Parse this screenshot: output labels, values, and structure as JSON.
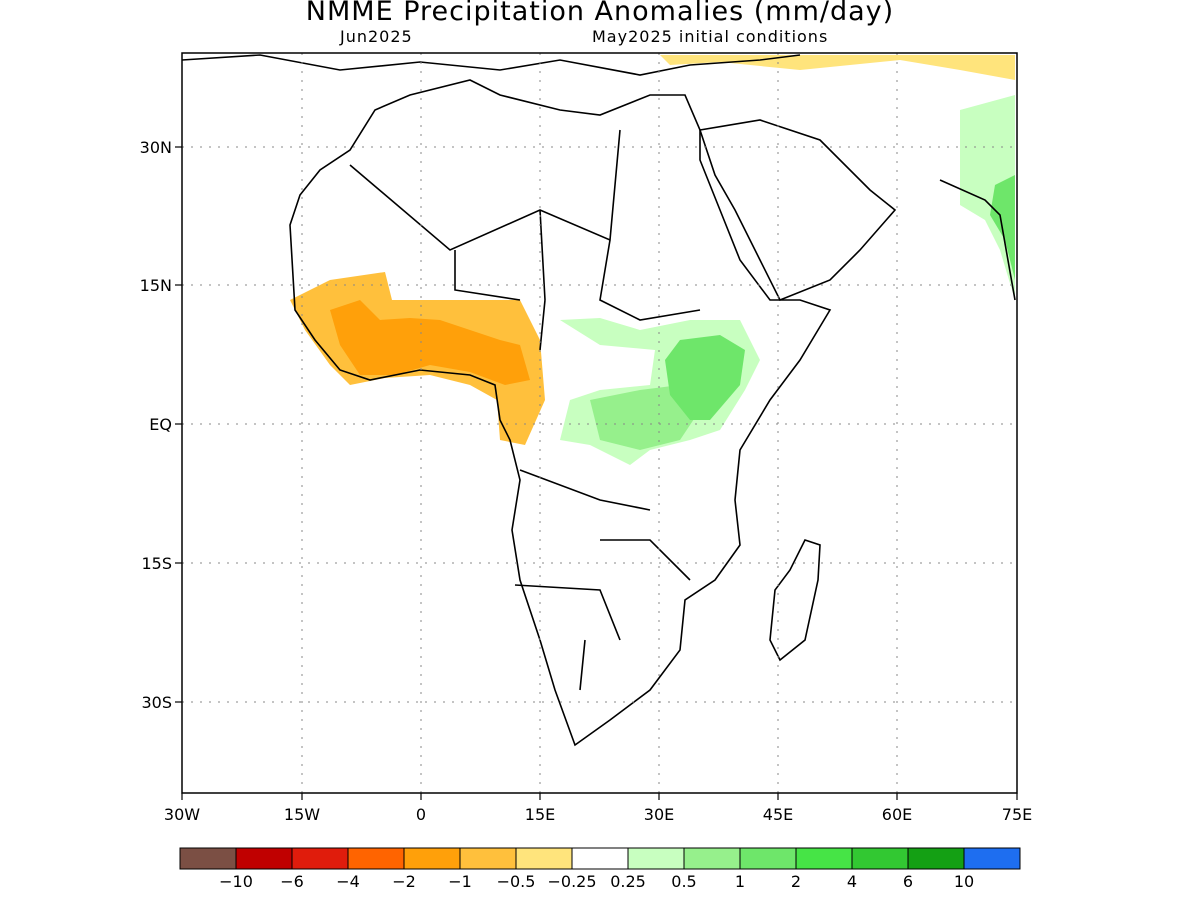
{
  "header": {
    "title": "NMME Precipitation Anomalies (mm/day)",
    "target_month": "Jun2025",
    "initial_conditions": "May2025 initial conditions"
  },
  "map": {
    "lon_ticks": [
      "30W",
      "15W",
      "0",
      "15E",
      "30E",
      "45E",
      "60E",
      "75E"
    ],
    "lat_ticks": [
      "30N",
      "15N",
      "EQ",
      "15S",
      "30S"
    ],
    "lon_range": [
      -30,
      75
    ],
    "lat_range": [
      -40,
      40
    ],
    "grid": "dotted"
  },
  "colorbar": {
    "colors": [
      "#7b4f44",
      "#c00000",
      "#e01c0c",
      "#ff6400",
      "#ffa00a",
      "#ffc03c",
      "#ffe47c",
      "#ffffff",
      "#c8ffc0",
      "#96f08c",
      "#6ee66a",
      "#46e446",
      "#32c832",
      "#14a014",
      "#1e6ef0"
    ],
    "labels": [
      "−10",
      "−6",
      "−4",
      "−2",
      "−1",
      "−0.5",
      "−0.25",
      "0.25",
      "0.5",
      "1",
      "2",
      "4",
      "6",
      "10"
    ]
  }
}
